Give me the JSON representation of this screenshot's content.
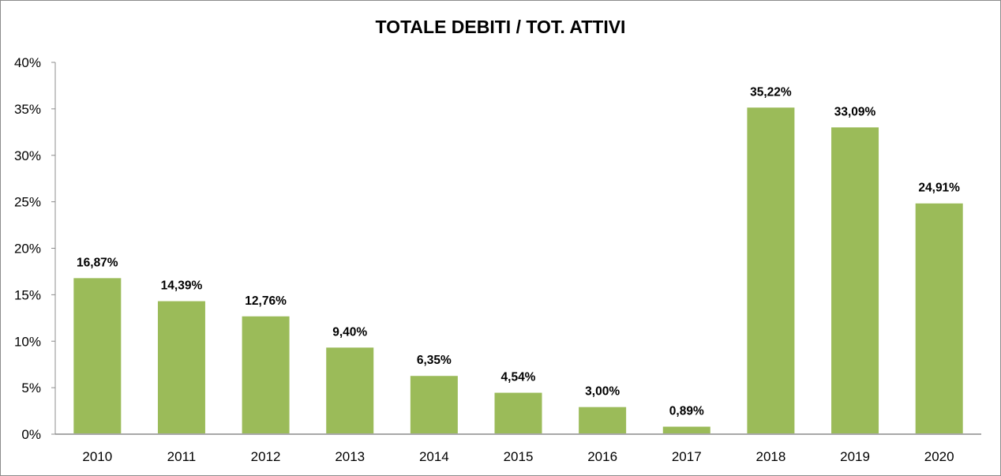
{
  "chart_data": {
    "type": "bar",
    "title": "TOTALE DEBITI / TOT. ATTIVI",
    "xlabel": "",
    "ylabel": "",
    "categories": [
      "2010",
      "2011",
      "2012",
      "2013",
      "2014",
      "2015",
      "2016",
      "2017",
      "2018",
      "2019",
      "2020"
    ],
    "values": [
      16.87,
      14.39,
      12.76,
      9.4,
      6.35,
      4.54,
      3.0,
      0.89,
      35.22,
      33.09,
      24.91
    ],
    "value_labels": [
      "16,87%",
      "14,39%",
      "12,76%",
      "9,40%",
      "6,35%",
      "4,54%",
      "3,00%",
      "0,89%",
      "35,22%",
      "33,09%",
      "24,91%"
    ],
    "ylim": [
      0,
      40
    ],
    "yticks": [
      0,
      5,
      10,
      15,
      20,
      25,
      30,
      35,
      40
    ],
    "ytick_labels": [
      "0%",
      "5%",
      "10%",
      "15%",
      "20%",
      "25%",
      "30%",
      "35%",
      "40%"
    ],
    "grid": false,
    "legend": "none",
    "bar_color": "#9bbb59"
  }
}
